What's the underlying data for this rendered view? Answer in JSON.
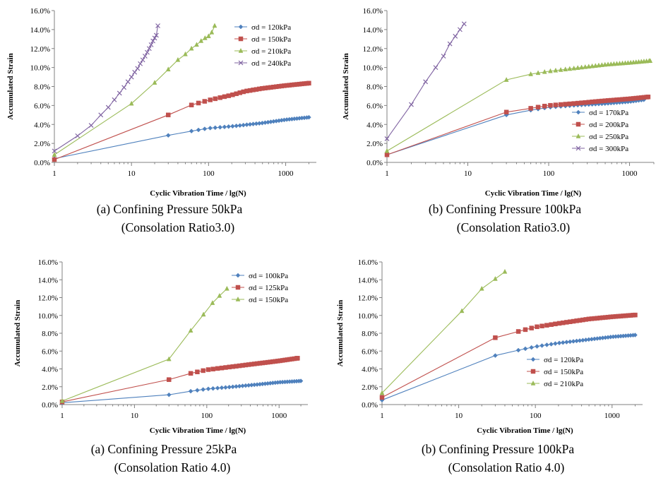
{
  "colors": {
    "blue": "#4f81bd",
    "red": "#c0504d",
    "green": "#9bbb59",
    "purple": "#8064a2"
  },
  "chart_data": [
    {
      "type": "line",
      "xscale": "log",
      "xlabel": "Cyclic Vibration Time / lg(N)",
      "ylabel": "Accumulated Strain",
      "xlim": [
        1,
        2500
      ],
      "ylim": [
        0,
        16
      ],
      "x_ticks": [
        "1",
        "10",
        "100",
        "1000"
      ],
      "y_ticks": [
        "0.0%",
        "2.0%",
        "4.0%",
        "6.0%",
        "8.0%",
        "10.0%",
        "12.0%",
        "14.0%",
        "16.0%"
      ],
      "legend_position": "top-right",
      "caption": [
        "(a) Confining Pressure 50kPa",
        "(Consolation Ratio3.0)"
      ],
      "series": [
        {
          "name": "σd = 120kPa",
          "color": "blue",
          "marker": "diamond",
          "dense": true,
          "points": [
            [
              1,
              0.4
            ],
            [
              30,
              2.85
            ],
            [
              60,
              3.3
            ],
            [
              100,
              3.6
            ],
            [
              200,
              3.8
            ],
            [
              500,
              4.15
            ],
            [
              1000,
              4.5
            ],
            [
              2000,
              4.75
            ]
          ]
        },
        {
          "name": "σd = 150kPa",
          "color": "red",
          "marker": "square",
          "dense": true,
          "points": [
            [
              1,
              0.3
            ],
            [
              30,
              5.0
            ],
            [
              60,
              6.05
            ],
            [
              100,
              6.55
            ],
            [
              200,
              7.1
            ],
            [
              300,
              7.5
            ],
            [
              500,
              7.8
            ],
            [
              1000,
              8.1
            ],
            [
              2000,
              8.35
            ]
          ]
        },
        {
          "name": "σd = 210kPa",
          "color": "green",
          "marker": "triangle",
          "dense": false,
          "points": [
            [
              1,
              0.8
            ],
            [
              10,
              6.2
            ],
            [
              20,
              8.4
            ],
            [
              30,
              9.8
            ],
            [
              40,
              10.8
            ],
            [
              50,
              11.4
            ],
            [
              60,
              12.0
            ],
            [
              70,
              12.4
            ],
            [
              80,
              12.8
            ],
            [
              90,
              13.1
            ],
            [
              100,
              13.3
            ],
            [
              110,
              13.7
            ],
            [
              120,
              14.4
            ]
          ]
        },
        {
          "name": "σd = 240kPa",
          "color": "purple",
          "marker": "x",
          "dense": false,
          "points": [
            [
              1,
              1.2
            ],
            [
              2,
              2.8
            ],
            [
              3,
              3.9
            ],
            [
              4,
              5.0
            ],
            [
              5,
              5.8
            ],
            [
              6,
              6.6
            ],
            [
              7,
              7.3
            ],
            [
              8,
              7.9
            ],
            [
              9,
              8.5
            ],
            [
              10,
              9.0
            ],
            [
              11,
              9.5
            ],
            [
              12,
              9.9
            ],
            [
              13,
              10.4
            ],
            [
              14,
              10.8
            ],
            [
              15,
              11.2
            ],
            [
              16,
              11.6
            ],
            [
              17,
              12.0
            ],
            [
              18,
              12.4
            ],
            [
              19,
              12.8
            ],
            [
              20,
              13.1
            ],
            [
              21,
              13.4
            ],
            [
              22,
              14.4
            ]
          ]
        }
      ]
    },
    {
      "type": "line",
      "xscale": "log",
      "xlabel": "Cyclic Vibration Time / lg(N)",
      "ylabel": "Accumulated Strain",
      "xlim": [
        1,
        2000
      ],
      "ylim": [
        0,
        16
      ],
      "x_ticks": [
        "1",
        "10",
        "100",
        "1000"
      ],
      "y_ticks": [
        "0.0%",
        "2.0%",
        "4.0%",
        "6.0%",
        "8.0%",
        "10.0%",
        "12.0%",
        "14.0%",
        "16.0%"
      ],
      "legend_position": "bottom-right",
      "caption": [
        "(b) Confining Pressure 100kPa",
        "(Consolation Ratio3.0)"
      ],
      "series": [
        {
          "name": "σd = 170kPa",
          "color": "blue",
          "marker": "diamond",
          "dense": true,
          "points": [
            [
              1,
              0.8
            ],
            [
              30,
              5.0
            ],
            [
              60,
              5.5
            ],
            [
              100,
              5.8
            ],
            [
              200,
              6.0
            ],
            [
              500,
              6.2
            ],
            [
              1000,
              6.4
            ],
            [
              1500,
              6.6
            ]
          ]
        },
        {
          "name": "σd = 200kPa",
          "color": "red",
          "marker": "square",
          "dense": true,
          "points": [
            [
              1,
              0.8
            ],
            [
              30,
              5.3
            ],
            [
              60,
              5.7
            ],
            [
              100,
              6.0
            ],
            [
              200,
              6.2
            ],
            [
              500,
              6.5
            ],
            [
              1000,
              6.7
            ],
            [
              1700,
              6.9
            ]
          ]
        },
        {
          "name": "σd = 250kPa",
          "color": "green",
          "marker": "triangle",
          "dense": true,
          "points": [
            [
              1,
              1.2
            ],
            [
              30,
              8.7
            ],
            [
              60,
              9.3
            ],
            [
              100,
              9.6
            ],
            [
              200,
              9.9
            ],
            [
              500,
              10.3
            ],
            [
              1000,
              10.5
            ],
            [
              1800,
              10.7
            ]
          ]
        },
        {
          "name": "σd = 300kPa",
          "color": "purple",
          "marker": "x",
          "dense": false,
          "points": [
            [
              1,
              2.5
            ],
            [
              2,
              6.1
            ],
            [
              3,
              8.5
            ],
            [
              4,
              10.0
            ],
            [
              5,
              11.2
            ],
            [
              6,
              12.5
            ],
            [
              7,
              13.3
            ],
            [
              8,
              14.0
            ],
            [
              9,
              14.6
            ]
          ]
        }
      ]
    },
    {
      "type": "line",
      "xscale": "log",
      "xlabel": "Cyclic Vibration Time / lg(N)",
      "ylabel": "Accumulated Strain",
      "xlim": [
        1,
        2500
      ],
      "ylim": [
        0,
        16
      ],
      "x_ticks": [
        "1",
        "10",
        "100",
        "1000"
      ],
      "y_ticks": [
        "0.0%",
        "2.0%",
        "4.0%",
        "6.0%",
        "8.0%",
        "10.0%",
        "12.0%",
        "14.0%",
        "16.0%"
      ],
      "legend_position": "top-right",
      "caption": [
        "(a) Confining Pressure 25kPa",
        "(Consolation Ratio 4.0)"
      ],
      "series": [
        {
          "name": "σd = 100kPa",
          "color": "blue",
          "marker": "diamond",
          "dense": true,
          "points": [
            [
              1,
              0.2
            ],
            [
              30,
              1.1
            ],
            [
              60,
              1.5
            ],
            [
              100,
              1.75
            ],
            [
              200,
              1.95
            ],
            [
              500,
              2.25
            ],
            [
              1000,
              2.5
            ],
            [
              2000,
              2.65
            ]
          ]
        },
        {
          "name": "σd = 125kPa",
          "color": "red",
          "marker": "square",
          "dense": true,
          "points": [
            [
              1,
              0.3
            ],
            [
              30,
              2.8
            ],
            [
              60,
              3.5
            ],
            [
              100,
              3.9
            ],
            [
              200,
              4.2
            ],
            [
              500,
              4.6
            ],
            [
              1000,
              4.9
            ],
            [
              1800,
              5.2
            ]
          ]
        },
        {
          "name": "σd = 150kPa",
          "color": "green",
          "marker": "triangle",
          "dense": false,
          "points": [
            [
              1,
              0.4
            ],
            [
              30,
              5.1
            ],
            [
              60,
              8.3
            ],
            [
              90,
              10.1
            ],
            [
              120,
              11.4
            ],
            [
              150,
              12.2
            ],
            [
              190,
              13.0
            ]
          ]
        }
      ]
    },
    {
      "type": "line",
      "xscale": "log",
      "xlabel": "Cyclic Vibration Time / lg(N)",
      "ylabel": "Accumulated Strain",
      "xlim": [
        1,
        2500
      ],
      "ylim": [
        0,
        16
      ],
      "x_ticks": [
        "1",
        "10",
        "100",
        "1000"
      ],
      "y_ticks": [
        "0.0%",
        "2.0%",
        "4.0%",
        "6.0%",
        "8.0%",
        "10.0%",
        "12.0%",
        "14.0%",
        "16.0%"
      ],
      "legend_position": "bottom-right",
      "caption": [
        "(b) Confining Pressure 100kPa",
        "(Consolation Ratio 4.0)"
      ],
      "series": [
        {
          "name": "σd = 120kPa",
          "color": "blue",
          "marker": "diamond",
          "dense": true,
          "points": [
            [
              1,
              0.5
            ],
            [
              30,
              5.5
            ],
            [
              60,
              6.1
            ],
            [
              100,
              6.5
            ],
            [
              200,
              6.9
            ],
            [
              500,
              7.3
            ],
            [
              1000,
              7.6
            ],
            [
              2000,
              7.8
            ]
          ]
        },
        {
          "name": "σd = 150kPa",
          "color": "red",
          "marker": "square",
          "dense": true,
          "points": [
            [
              1,
              0.8
            ],
            [
              30,
              7.5
            ],
            [
              60,
              8.2
            ],
            [
              100,
              8.7
            ],
            [
              200,
              9.1
            ],
            [
              500,
              9.6
            ],
            [
              1000,
              9.85
            ],
            [
              2000,
              10.05
            ]
          ]
        },
        {
          "name": "σd = 210kPa",
          "color": "green",
          "marker": "triangle",
          "dense": false,
          "points": [
            [
              1,
              1.3
            ],
            [
              11,
              10.5
            ],
            [
              20,
              13.0
            ],
            [
              30,
              14.1
            ],
            [
              40,
              14.9
            ]
          ]
        }
      ]
    }
  ]
}
